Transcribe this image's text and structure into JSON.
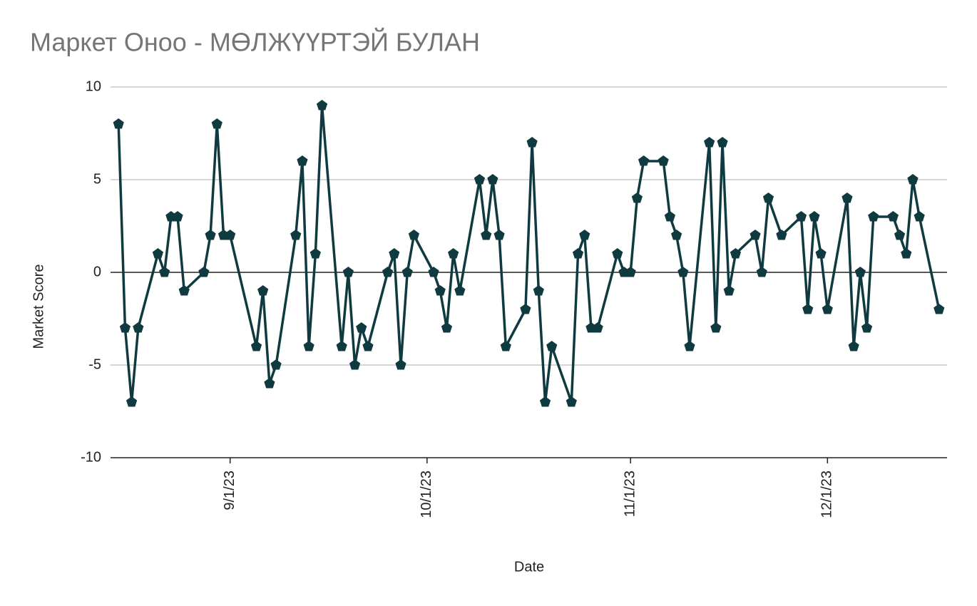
{
  "chart_data": {
    "type": "line",
    "title": "Маркет Оноо - МӨЛЖҮҮРТЭЙ БУЛАН",
    "xlabel": "Date",
    "ylabel": "Market Score",
    "x": [
      "8/15/23",
      "8/16/23",
      "8/17/23",
      "8/18/23",
      "8/21/23",
      "8/22/23",
      "8/23/23",
      "8/24/23",
      "8/25/23",
      "8/28/23",
      "8/29/23",
      "8/30/23",
      "8/31/23",
      "9/1/23",
      "9/5/23",
      "9/6/23",
      "9/7/23",
      "9/8/23",
      "9/11/23",
      "9/12/23",
      "9/13/23",
      "9/14/23",
      "9/15/23",
      "9/18/23",
      "9/19/23",
      "9/20/23",
      "9/21/23",
      "9/22/23",
      "9/25/23",
      "9/26/23",
      "9/27/23",
      "9/28/23",
      "9/29/23",
      "10/2/23",
      "10/3/23",
      "10/4/23",
      "10/5/23",
      "10/6/23",
      "10/9/23",
      "10/10/23",
      "10/11/23",
      "10/12/23",
      "10/13/23",
      "10/16/23",
      "10/17/23",
      "10/18/23",
      "10/19/23",
      "10/20/23",
      "10/23/23",
      "10/24/23",
      "10/25/23",
      "10/26/23",
      "10/27/23",
      "10/30/23",
      "10/31/23",
      "11/1/23",
      "11/2/23",
      "11/3/23",
      "11/6/23",
      "11/7/23",
      "11/8/23",
      "11/9/23",
      "11/10/23",
      "11/13/23",
      "11/14/23",
      "11/15/23",
      "11/16/23",
      "11/17/23",
      "11/20/23",
      "11/21/23",
      "11/22/23",
      "11/24/23",
      "11/27/23",
      "11/28/23",
      "11/29/23",
      "11/30/23",
      "12/1/23",
      "12/4/23",
      "12/5/23",
      "12/6/23",
      "12/7/23",
      "12/8/23",
      "12/11/23",
      "12/12/23",
      "12/13/23",
      "12/14/23",
      "12/15/23",
      "12/18/23"
    ],
    "values": [
      8,
      -3,
      -7,
      -3,
      1,
      0,
      3,
      3,
      -1,
      0,
      2,
      8,
      2,
      2,
      -4,
      -1,
      -6,
      -5,
      2,
      6,
      -4,
      1,
      9,
      -4,
      0,
      -5,
      -3,
      -4,
      0,
      1,
      -5,
      0,
      2,
      0,
      -1,
      -3,
      1,
      -1,
      5,
      2,
      5,
      2,
      -4,
      -2,
      7,
      -1,
      -7,
      -4,
      -7,
      1,
      2,
      -3,
      -3,
      1,
      0,
      0,
      4,
      6,
      6,
      3,
      2,
      0,
      -4,
      7,
      -3,
      7,
      -1,
      1,
      2,
      0,
      4,
      2,
      3,
      -2,
      3,
      1,
      -2,
      4,
      -4,
      0,
      -3,
      3,
      3,
      2,
      1,
      5,
      3,
      -2
    ],
    "color": "#0f3a40",
    "xlim": [
      "8/14/23",
      "12/19/23"
    ],
    "xticks": [
      "9/1/23",
      "10/1/23",
      "11/1/23",
      "12/1/23"
    ],
    "ylim": [
      -10,
      10
    ],
    "yticks": [
      -10,
      -5,
      0,
      5,
      10
    ],
    "grid": true
  }
}
